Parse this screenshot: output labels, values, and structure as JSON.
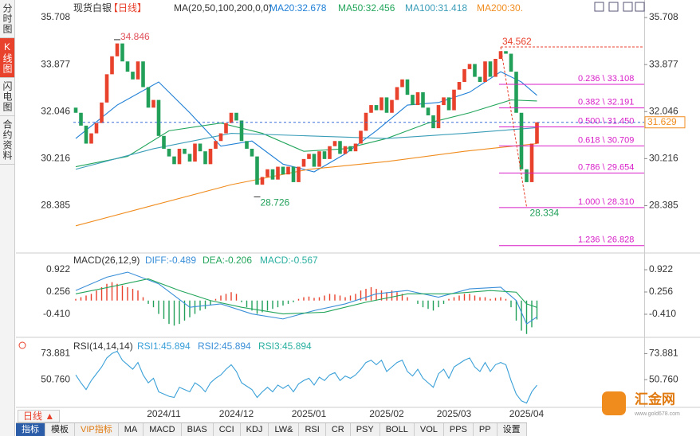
{
  "sidebar": [
    "分时图",
    "K线图",
    "闪电图",
    "合约资料"
  ],
  "header": {
    "symbol": "现货白银",
    "period": "【日线】",
    "ma_label": "MA(20,50,100,200,0,0)"
  },
  "chart_data": [
    {
      "type": "candlestick",
      "first_open": 32.2,
      "close": [
        32.0,
        31.5,
        30.8,
        31.2,
        31.6,
        32.4,
        33.5,
        34.2,
        34.7,
        34.0,
        33.6,
        33.3,
        34.0,
        33.0,
        32.2,
        32.5,
        31.1,
        30.6,
        30.3,
        30.0,
        30.6,
        30.4,
        30.1,
        30.8,
        30.5,
        30.0,
        30.6,
        30.9,
        31.2,
        31.6,
        32.0,
        31.7,
        30.9,
        30.6,
        30.3,
        29.2,
        29.5,
        29.8,
        29.4,
        29.9,
        29.6,
        29.9,
        29.3,
        29.9,
        30.2,
        30.4,
        29.9,
        30.5,
        30.2,
        30.7,
        30.9,
        30.4,
        30.7,
        30.5,
        30.8,
        31.3,
        32.0,
        32.3,
        32.1,
        32.6,
        32.0,
        32.5,
        33.0,
        33.3,
        32.7,
        32.3,
        32.8,
        32.2,
        31.9,
        31.4,
        32.3,
        32.6,
        32.1,
        32.9,
        33.2,
        33.7,
        33.9,
        33.4,
        33.2,
        34.0,
        33.4,
        34.1,
        34.4,
        34.3,
        33.6,
        32.0,
        29.8,
        29.3,
        30.8,
        31.63
      ],
      "up_color": "#e8412c",
      "down_color": "#22a05a",
      "ylim": [
        26.54,
        36.02
      ],
      "yticks": [
        35.708,
        33.877,
        32.046,
        30.216,
        28.385
      ],
      "xticks": [
        {
          "value": 17,
          "label": "2024/11"
        },
        {
          "value": 31,
          "label": "2024/12"
        },
        {
          "value": 45,
          "label": "2025/01"
        },
        {
          "value": 60,
          "label": "2025/02"
        },
        {
          "value": 73,
          "label": "2025/03"
        },
        {
          "value": 87,
          "label": "2025/04"
        }
      ],
      "series": [
        {
          "name": "MA20",
          "label": "MA20:32.678",
          "color": "#1f7fd6",
          "x": [
            0,
            8,
            16,
            22,
            28,
            34,
            40,
            46,
            52,
            58,
            64,
            70,
            76,
            82,
            86,
            89
          ],
          "values": [
            31.0,
            32.3,
            33.2,
            32.0,
            30.7,
            30.9,
            30.0,
            29.7,
            30.4,
            31.3,
            32.3,
            32.4,
            32.8,
            33.6,
            33.2,
            32.68
          ]
        },
        {
          "name": "MA50",
          "label": "MA50:32.456",
          "color": "#22a55b",
          "x": [
            0,
            10,
            18,
            28,
            36,
            44,
            52,
            60,
            68,
            76,
            84,
            89
          ],
          "values": [
            29.9,
            30.3,
            31.3,
            31.6,
            31.2,
            30.5,
            30.6,
            31.0,
            31.6,
            32.0,
            32.5,
            32.46
          ]
        },
        {
          "name": "MA100",
          "label": "MA100:31.418",
          "color": "#3a9db8",
          "x": [
            0,
            15,
            30,
            45,
            60,
            75,
            89
          ],
          "values": [
            29.8,
            30.6,
            31.2,
            31.1,
            31.0,
            31.2,
            31.42
          ]
        },
        {
          "name": "MA200",
          "label": "MA200:30.",
          "color": "#f08c1e",
          "x": [
            0,
            15,
            30,
            45,
            60,
            75,
            89
          ],
          "values": [
            27.6,
            28.4,
            29.2,
            29.8,
            30.1,
            30.5,
            30.8
          ]
        }
      ],
      "fib": {
        "color": "#d81ec8",
        "x": 82,
        "levels": [
          {
            "value": 33.108,
            "label": "0.236 \\ 33.108"
          },
          {
            "value": 32.191,
            "label": "0.382 \\ 32.191"
          },
          {
            "value": 31.45,
            "label": "0.500 \\ 31.450"
          },
          {
            "value": 30.709,
            "label": "0.618 \\ 30.709"
          },
          {
            "value": 29.654,
            "label": "0.786 \\ 29.654"
          },
          {
            "value": 28.31,
            "label": "1.000 \\ 28.310"
          },
          {
            "value": 26.828,
            "label": "1.236 \\ 26.828"
          }
        ]
      },
      "swing": {
        "color": "#e8412c",
        "high": {
          "x": 82,
          "value": 34.562,
          "label": "34.562"
        },
        "low": {
          "x": 87,
          "value": 28.334,
          "label": "28.334"
        }
      },
      "annotations": [
        {
          "x": 8,
          "value": 34.846,
          "label": "34.846",
          "color": "#e0505a"
        },
        {
          "x": 35,
          "value": 28.726,
          "label": "28.726",
          "color": "#22a05a"
        }
      ],
      "last": {
        "value": 31.629,
        "label": "31.629",
        "color": "#f08c1e"
      }
    },
    {
      "type": "macd",
      "title": "MACD(26,12,9)",
      "histogram_label": "MACD:-0.567",
      "histogram": [
        0.05,
        0.1,
        0.15,
        0.2,
        0.3,
        0.4,
        0.5,
        0.55,
        0.5,
        0.45,
        0.4,
        0.35,
        0.3,
        0.1,
        -0.1,
        -0.2,
        -0.4,
        -0.55,
        -0.7,
        -0.75,
        -0.7,
        -0.6,
        -0.5,
        -0.4,
        -0.3,
        -0.25,
        -0.15,
        0.05,
        0.15,
        0.2,
        0.25,
        0.2,
        -0.05,
        -0.2,
        -0.3,
        -0.4,
        -0.35,
        -0.3,
        -0.25,
        -0.2,
        -0.15,
        -0.1,
        -0.05,
        0.05,
        0.1,
        0.12,
        0.08,
        0.1,
        0.15,
        0.2,
        0.18,
        0.15,
        0.1,
        0.15,
        0.2,
        0.3,
        0.35,
        0.4,
        0.35,
        0.3,
        0.25,
        0.3,
        0.25,
        0.2,
        0.1,
        0.0,
        -0.1,
        -0.2,
        -0.25,
        -0.3,
        -0.2,
        -0.1,
        0.05,
        0.1,
        0.15,
        0.2,
        0.2,
        0.15,
        0.1,
        0.1,
        0.05,
        0.08,
        0.1,
        0.05,
        -0.2,
        -0.6,
        -0.9,
        -1.0,
        -0.8,
        -0.567
      ],
      "up_color": "#e8412c",
      "down_color": "#22a05a",
      "ylim": [
        -1.077,
        1.327
      ],
      "yticks": [
        0.922,
        0.256,
        {
          "value": -0.41,
          "label": "-0.410"
        }
      ],
      "series": [
        {
          "name": "DIFF:-0.489",
          "color": "#3a8fd8",
          "x": [
            0,
            6,
            10,
            16,
            22,
            28,
            34,
            40,
            46,
            52,
            58,
            64,
            70,
            76,
            82,
            85,
            87,
            89
          ],
          "values": [
            0.3,
            0.7,
            0.85,
            0.5,
            -0.2,
            -0.1,
            -0.4,
            -0.55,
            -0.3,
            -0.1,
            0.2,
            0.3,
            0.1,
            0.35,
            0.4,
            0.0,
            -0.7,
            -0.489
          ]
        },
        {
          "name": "DEA:-0.206",
          "color": "#22a55b",
          "x": [
            0,
            8,
            14,
            20,
            26,
            32,
            40,
            48,
            56,
            64,
            72,
            80,
            85,
            87,
            89
          ],
          "values": [
            0.2,
            0.45,
            0.65,
            0.3,
            0.0,
            -0.2,
            -0.4,
            -0.35,
            -0.05,
            0.2,
            0.2,
            0.3,
            0.25,
            -0.1,
            -0.206
          ]
        }
      ]
    },
    {
      "type": "line",
      "title": "RSI(14,14,14)",
      "ylim": [
        27.64,
        85.44
      ],
      "yticks": [
        73.881,
        {
          "value": 50.76,
          "label": "50.760"
        }
      ],
      "series": [
        {
          "name": "RSI1:45.894",
          "color": "#3aa0d8",
          "values": [
            55,
            48,
            42,
            50,
            56,
            62,
            70,
            74,
            76,
            68,
            64,
            60,
            66,
            55,
            48,
            52,
            40,
            38,
            36,
            35,
            44,
            42,
            40,
            48,
            45,
            40,
            48,
            52,
            55,
            60,
            64,
            58,
            48,
            45,
            42,
            35,
            40,
            44,
            40,
            46,
            43,
            46,
            40,
            47,
            50,
            52,
            46,
            53,
            50,
            55,
            57,
            50,
            54,
            52,
            55,
            60,
            66,
            68,
            64,
            68,
            58,
            62,
            66,
            68,
            58,
            54,
            60,
            52,
            48,
            44,
            56,
            60,
            52,
            62,
            65,
            68,
            70,
            62,
            58,
            66,
            58,
            64,
            66,
            64,
            50,
            38,
            32,
            30,
            40,
            45.894
          ]
        }
      ],
      "legend": [
        {
          "name": "RSI2:45.894",
          "color": "#3a8fd8"
        },
        {
          "name": "RSI3:45.894",
          "color": "#2ab0a0"
        }
      ]
    }
  ],
  "toolbar": {
    "period": "日线 ▲",
    "tabs": [
      "指标",
      "模板",
      "VIP指标",
      "MA",
      "MACD",
      "BIAS",
      "CCI",
      "KDJ",
      "LW&",
      "RSI",
      "CR",
      "PSY",
      "BOLL",
      "VOL",
      "PPS",
      "PP",
      "设置"
    ]
  },
  "logo": {
    "name": "汇金网",
    "url": "www.gold678.com"
  }
}
